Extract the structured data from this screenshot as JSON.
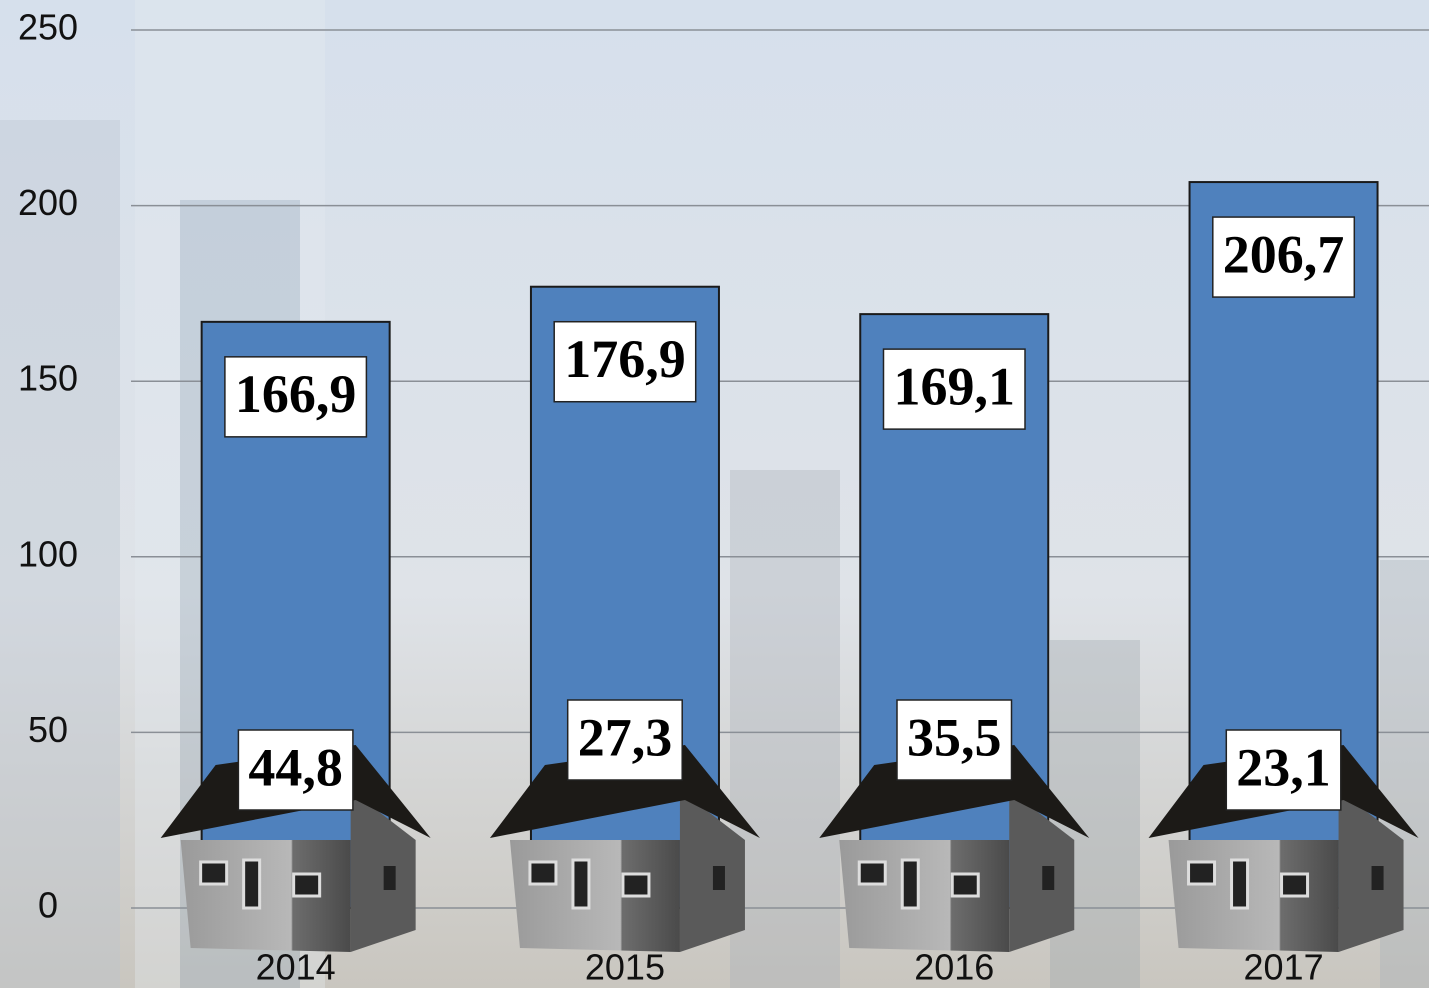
{
  "chart_data": {
    "type": "bar",
    "categories": [
      "2014",
      "2015",
      "2016",
      "2017"
    ],
    "series": [
      {
        "color": "#4f81bd",
        "values": [
          166.9,
          176.9,
          169.1,
          206.7
        ],
        "value_labels": [
          "166,9",
          "176,9",
          "169,1",
          "206,7"
        ]
      },
      {
        "color": "#1c1a17",
        "values": [
          44.8,
          27.3,
          35.5,
          23.1
        ],
        "value_labels": [
          "44,8",
          "27,3",
          "35,5",
          "23,1"
        ]
      }
    ],
    "ylim": [
      0,
      250
    ],
    "yticks": [
      0,
      50,
      100,
      150,
      200,
      250
    ],
    "grid": true
  }
}
